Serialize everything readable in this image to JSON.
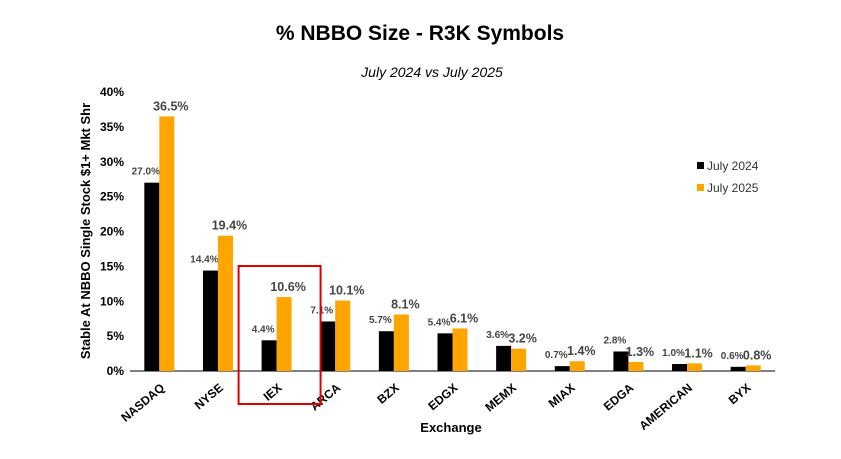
{
  "chart_data": {
    "type": "bar",
    "title": "% NBBO Size - R3K Symbols",
    "subtitle": "July 2024 vs July 2025",
    "xlabel": "Exchange",
    "ylabel": "Stable At NBBO Single Stock $1+ Mkt Shr",
    "ylim": [
      0,
      40
    ],
    "yticks": [
      "0%",
      "5%",
      "10%",
      "15%",
      "20%",
      "25%",
      "30%",
      "35%",
      "40%"
    ],
    "categories": [
      "NASDAQ",
      "NYSE",
      "IEX",
      "ARCA",
      "BZX",
      "EDGX",
      "MEMX",
      "MIAX",
      "EDGA",
      "AMERICAN",
      "BYX"
    ],
    "series": [
      {
        "name": "July 2024",
        "color": "#000000",
        "values": [
          27.0,
          14.4,
          4.4,
          7.1,
          5.7,
          5.4,
          3.6,
          0.7,
          2.8,
          1.0,
          0.6
        ],
        "labels": [
          "27.0%",
          "14.4%",
          "4.4%",
          "7.1%",
          "5.7%",
          "5.4%",
          "3.6%",
          "0.7%",
          "2.8%",
          "1.0%",
          "0.6%"
        ]
      },
      {
        "name": "July 2025",
        "color": "#FFA500",
        "values": [
          36.5,
          19.4,
          10.6,
          10.1,
          8.1,
          6.1,
          3.2,
          1.4,
          1.3,
          1.1,
          0.8
        ],
        "labels": [
          "36.5%",
          "19.4%",
          "10.6%",
          "10.1%",
          "8.1%",
          "6.1%",
          "3.2%",
          "1.4%",
          "1.3%",
          "1.1%",
          "0.8%"
        ]
      }
    ],
    "legend_position": "right",
    "highlight": {
      "category": "IEX",
      "color": "#E00000"
    }
  }
}
